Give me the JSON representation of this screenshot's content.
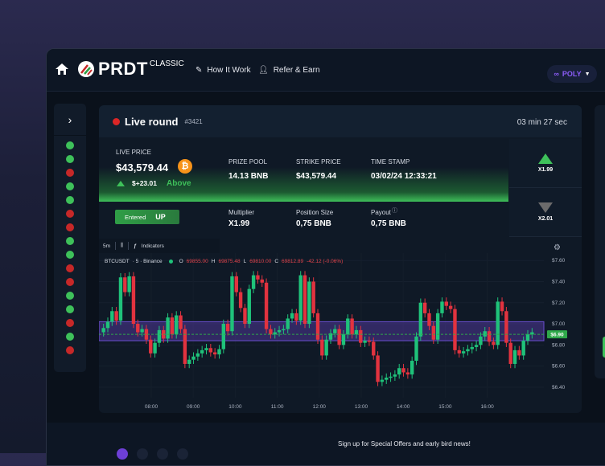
{
  "header": {
    "brand": "PRDT",
    "brand_sub": "CLASSIC",
    "nav": [
      {
        "label": "How It Work"
      },
      {
        "label": "Refer & Earn"
      }
    ],
    "network": "POLY"
  },
  "history": [
    "up",
    "up",
    "down",
    "up",
    "up",
    "down",
    "down",
    "up",
    "up",
    "down",
    "down",
    "up",
    "up",
    "down",
    "up",
    "down"
  ],
  "round": {
    "title": "Live round",
    "number": "#3421",
    "timer": "03 min 27 sec"
  },
  "info": {
    "live_price_label": "LIVE PRICE",
    "live_price": "$43,579.44",
    "change": "$+23.01",
    "direction": "Above",
    "prize_pool_label": "PRIZE POOL",
    "prize_pool": "14.13 BNB",
    "strike_label": "STRIKE PRICE",
    "strike": "$43,579.44",
    "timestamp_label": "TIME STAMP",
    "timestamp": "03/02/24 12:33:21"
  },
  "position": {
    "entered_label": "Entered",
    "entered_side": "UP",
    "multiplier_label": "Multiplier",
    "multiplier": "X1.99",
    "size_label": "Position Size",
    "size": "0,75 BNB",
    "payout_label": "Payout",
    "payout": "0,75 BNB"
  },
  "bets": {
    "up": "X1.99",
    "down": "X2.01"
  },
  "chart_toolbar": {
    "interval": "5m",
    "indicators": "Indicators"
  },
  "chart_legend": {
    "symbol": "BTCUSDT",
    "interval": "· 5 · Binance",
    "o": "69855.00",
    "h": "69875.48",
    "l": "69810.00",
    "c": "69812.89",
    "chg": "-42.12 (-0.06%)"
  },
  "footer": {
    "signup": "Sign up for Special Offers and early bird news!"
  },
  "colors": {
    "up": "#3ec15a",
    "down": "#c62828",
    "candle_up": "#1fc27a",
    "candle_down": "#e2333f",
    "band": "#5b3fb0"
  },
  "chart_data": {
    "type": "candlestick",
    "y_ticks": [
      "$7.60",
      "$7.40",
      "$7.20",
      "$7.00",
      "$6.80",
      "$6.60",
      "$6.40"
    ],
    "y_values": [
      7.6,
      7.4,
      7.2,
      7.0,
      6.8,
      6.6,
      6.4
    ],
    "ylim": [
      6.3,
      7.67
    ],
    "x_ticks": [
      "08:00",
      "09:00",
      "10:00",
      "11:00",
      "12:00",
      "13:00",
      "14:00",
      "15:00",
      "16:00"
    ],
    "current_price": 6.9,
    "current_label": "$6.90",
    "band": [
      6.84,
      7.02
    ],
    "open_first": 6.92,
    "closes": [
      6.96,
      7.02,
      7.12,
      7.03,
      7.44,
      7.3,
      7.45,
      7.0,
      6.92,
      6.95,
      6.85,
      6.72,
      6.82,
      6.94,
      6.86,
      7.06,
      6.9,
      7.08,
      6.95,
      6.62,
      6.66,
      6.69,
      6.72,
      6.75,
      6.77,
      6.73,
      6.71,
      6.76,
      7.0,
      6.93,
      7.45,
      7.3,
      7.15,
      7.0,
      7.33,
      7.46,
      7.42,
      7.39,
      6.95,
      6.9,
      6.92,
      6.94,
      6.95,
      7.05,
      7.1,
      7.03,
      7.46,
      7.0,
      7.4,
      7.1,
      6.85,
      6.7,
      6.85,
      6.91,
      6.95,
      6.8,
      6.9,
      7.05,
      6.9,
      6.94,
      6.82,
      6.84,
      6.83,
      6.7,
      6.45,
      6.47,
      6.49,
      6.5,
      6.52,
      6.58,
      6.54,
      6.52,
      6.65,
      6.88,
      7.2,
      7.1,
      6.98,
      6.85,
      7.1,
      7.21,
      7.17,
      7.14,
      6.75,
      6.72,
      6.74,
      6.76,
      6.78,
      6.8,
      6.88,
      6.93,
      6.83,
      6.8,
      7.21,
      7.12,
      6.82,
      6.62,
      6.75,
      6.7,
      6.84,
      6.9,
      6.92
    ]
  }
}
